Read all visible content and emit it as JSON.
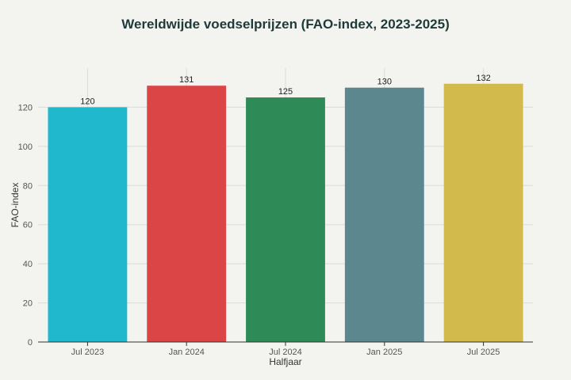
{
  "chart_data": {
    "type": "bar",
    "title": "Wereldwijde voedselprijzen (FAO-index, 2023-2025)",
    "xlabel": "Halfjaar",
    "ylabel": "FAO-index",
    "categories": [
      "Jul 2023",
      "Jan 2024",
      "Jul 2024",
      "Jan 2025",
      "Jul 2025"
    ],
    "values": [
      120,
      131,
      125,
      130,
      132
    ],
    "colors": [
      "#1fb8cd",
      "#db4545",
      "#2e8b57",
      "#5d878f",
      "#d2ba4c"
    ],
    "ylim": [
      0,
      140
    ],
    "yticks": [
      0,
      20,
      40,
      60,
      80,
      100,
      120
    ],
    "grid": true,
    "legend": "none"
  }
}
